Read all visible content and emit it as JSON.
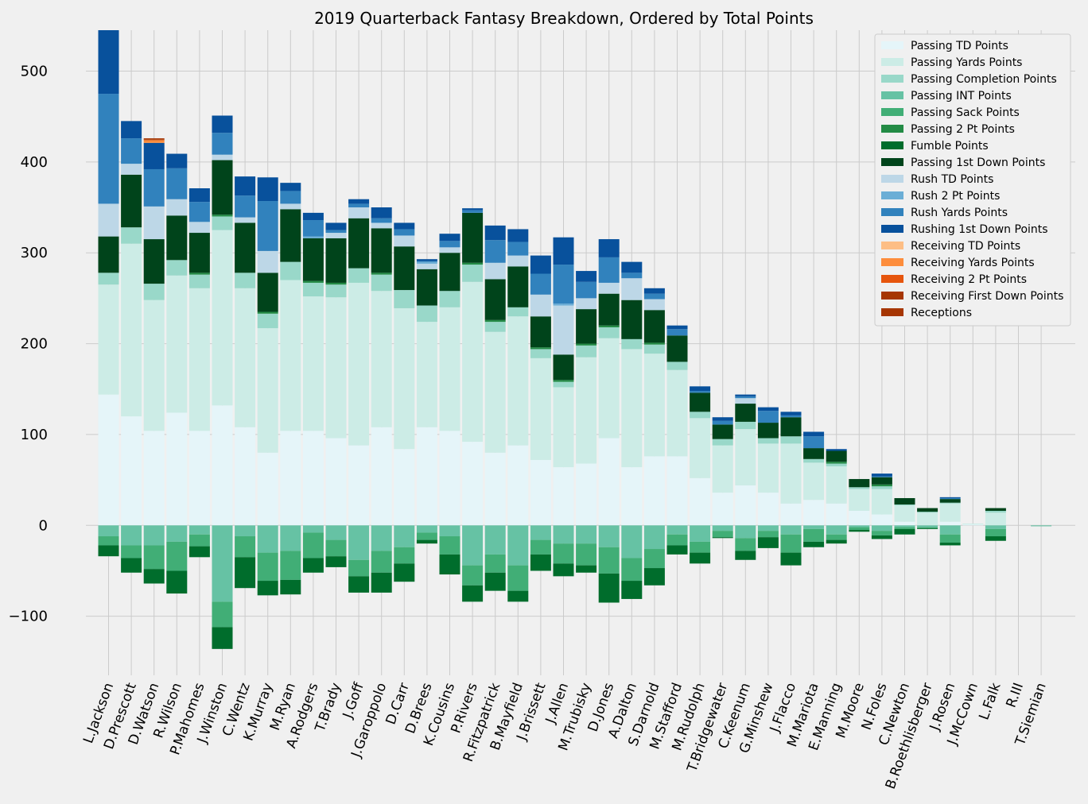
{
  "chart_data": {
    "type": "bar",
    "stacked": true,
    "title": "2019 Quarterback Fantasy Breakdown, Ordered by Total Points",
    "xlabel": "",
    "ylabel": "",
    "ylim": [
      -165,
      545
    ],
    "yticks": [
      -100,
      0,
      100,
      200,
      300,
      400,
      500
    ],
    "ytick_labels": [
      "−100",
      "0",
      "100",
      "200",
      "300",
      "400",
      "500"
    ],
    "grid": true,
    "legend_position": "top-right",
    "categories": [
      "L.Jackson",
      "D.Prescott",
      "D.Watson",
      "R.Wilson",
      "P.Mahomes",
      "J.Winston",
      "C.Wentz",
      "K.Murray",
      "M.Ryan",
      "A.Rodgers",
      "T.Brady",
      "J.Goff",
      "J.Garoppolo",
      "D.Carr",
      "D.Brees",
      "K.Cousins",
      "P.Rivers",
      "R.Fitzpatrick",
      "B.Mayfield",
      "J.Brissett",
      "J.Allen",
      "M.Trubisky",
      "D.Jones",
      "A.Dalton",
      "S.Darnold",
      "M.Stafford",
      "M.Rudolph",
      "T.Bridgewater",
      "C.Keenum",
      "G.Minshew",
      "J.Flacco",
      "M.Mariota",
      "E.Manning",
      "M.Moore",
      "N.Foles",
      "C.Newton",
      "B.Roethlisberger",
      "J.Rosen",
      "J.McCown",
      "L.Falk",
      "R.III",
      "T.Siemian"
    ],
    "series": [
      {
        "name": "Passing TD Points",
        "color": "#e5f5f9",
        "values": [
          144,
          120,
          104,
          124,
          104,
          132,
          108,
          80,
          104,
          104,
          96,
          88,
          108,
          84,
          108,
          104,
          92,
          80,
          88,
          72,
          64,
          68,
          96,
          64,
          76,
          76,
          52,
          36,
          44,
          36,
          24,
          28,
          24,
          16,
          12,
          4,
          0,
          4,
          1,
          0,
          0,
          0
        ]
      },
      {
        "name": "Passing Yards Points",
        "color": "#ccece6",
        "values": [
          121,
          190,
          144,
          151,
          157,
          193,
          153,
          137,
          166,
          148,
          155,
          179,
          150,
          155,
          116,
          136,
          176,
          133,
          142,
          112,
          88,
          117,
          110,
          130,
          113,
          95,
          66,
          52,
          62,
          54,
          66,
          41,
          41,
          24,
          28,
          18,
          14,
          20,
          1,
          14,
          0,
          0
        ]
      },
      {
        "name": "Passing Completion Points",
        "color": "#99d8c9",
        "values": [
          13,
          18,
          18,
          17,
          15,
          15,
          17,
          16,
          20,
          15,
          14,
          16,
          18,
          20,
          18,
          18,
          19,
          11,
          10,
          10,
          6,
          13,
          12,
          11,
          10,
          9,
          7,
          7,
          8,
          6,
          8,
          4,
          3,
          2,
          3,
          1,
          1,
          1,
          0,
          2,
          0,
          0
        ]
      },
      {
        "name": "Passing INT Points",
        "color": "#66c2a4",
        "values": [
          -12,
          -22,
          -22,
          -18,
          -10,
          -84,
          -12,
          -30,
          -28,
          -8,
          -16,
          -38,
          -28,
          -24,
          -8,
          -12,
          -44,
          -32,
          -44,
          -16,
          -20,
          -20,
          -24,
          -36,
          -26,
          -10,
          -18,
          -6,
          -14,
          -6,
          -10,
          -4,
          -10,
          -2,
          -6,
          -2,
          -2,
          -10,
          0,
          -4,
          0,
          -1
        ]
      },
      {
        "name": "Passing Sack Points",
        "color": "#41ae76",
        "values": [
          -10,
          -14,
          -26,
          -32,
          -13,
          -28,
          -23,
          -31,
          -32,
          -28,
          -18,
          -18,
          -24,
          -18,
          -8,
          -20,
          -22,
          -20,
          -28,
          -16,
          -22,
          -24,
          -29,
          -25,
          -21,
          -12,
          -12,
          -7,
          -14,
          -7,
          -20,
          -14,
          -6,
          -3,
          -5,
          -2,
          -1,
          -9,
          0,
          -8,
          0,
          0
        ]
      },
      {
        "name": "Passing 2 Pt Points",
        "color": "#238b45",
        "values": [
          0,
          0,
          0,
          0,
          2,
          2,
          0,
          2,
          0,
          2,
          2,
          0,
          2,
          0,
          0,
          0,
          2,
          2,
          0,
          2,
          2,
          2,
          2,
          0,
          2,
          0,
          0,
          0,
          0,
          0,
          0,
          0,
          2,
          0,
          2,
          0,
          0,
          0,
          0,
          0,
          0,
          0
        ]
      },
      {
        "name": "Fumble Points",
        "color": "#006d2c",
        "values": [
          -12,
          -16,
          -16,
          -25,
          -12,
          -24,
          -34,
          -16,
          -16,
          -16,
          -12,
          -18,
          -22,
          -20,
          -4,
          -22,
          -18,
          -20,
          -12,
          -18,
          -14,
          -8,
          -32,
          -20,
          -19,
          -10,
          -12,
          -1,
          -10,
          -12,
          -14,
          -6,
          -4,
          -2,
          -4,
          -6,
          -1,
          -3,
          0,
          -5,
          0,
          0
        ]
      },
      {
        "name": "Passing 1st Down Points",
        "color": "#00441b",
        "values": [
          40,
          58,
          49,
          49,
          44,
          60,
          55,
          43,
          58,
          47,
          49,
          55,
          49,
          48,
          40,
          42,
          55,
          45,
          45,
          34,
          28,
          38,
          35,
          43,
          36,
          29,
          21,
          16,
          20,
          17,
          21,
          12,
          12,
          9,
          8,
          7,
          4,
          4,
          0,
          3,
          0,
          0
        ]
      },
      {
        "name": "Rush TD Points",
        "color": "#bdd7e7",
        "values": [
          36,
          12,
          36,
          18,
          12,
          6,
          6,
          24,
          6,
          0,
          6,
          12,
          6,
          12,
          6,
          6,
          0,
          18,
          12,
          24,
          54,
          12,
          12,
          24,
          12,
          0,
          0,
          0,
          6,
          0,
          0,
          0,
          0,
          0,
          0,
          0,
          0,
          0,
          0,
          0,
          0,
          0
        ]
      },
      {
        "name": "Rush 2 Pt Points",
        "color": "#6baed6",
        "values": [
          0,
          0,
          0,
          0,
          0,
          0,
          0,
          0,
          0,
          2,
          0,
          0,
          0,
          0,
          2,
          0,
          0,
          0,
          0,
          0,
          2,
          0,
          0,
          0,
          0,
          0,
          0,
          0,
          0,
          0,
          0,
          0,
          0,
          0,
          0,
          0,
          0,
          0,
          0,
          0,
          0,
          0
        ]
      },
      {
        "name": "Rush Yards Points",
        "color": "#3182bd",
        "values": [
          121,
          28,
          41,
          34,
          22,
          24,
          24,
          55,
          14,
          18,
          3,
          4,
          5,
          7,
          1,
          7,
          3,
          25,
          15,
          23,
          43,
          18,
          28,
          6,
          6,
          7,
          2,
          4,
          2,
          13,
          2,
          13,
          0,
          0,
          1,
          0,
          0,
          1,
          0,
          0,
          0,
          0
        ]
      },
      {
        "name": "Rushing 1st Down Points",
        "color": "#08519c",
        "values": [
          70,
          19,
          29,
          16,
          15,
          19,
          21,
          26,
          9,
          8,
          8,
          5,
          12,
          7,
          2,
          8,
          2,
          16,
          14,
          20,
          30,
          12,
          20,
          12,
          6,
          4,
          5,
          4,
          2,
          4,
          4,
          5,
          2,
          0,
          3,
          0,
          0,
          1,
          0,
          0,
          0,
          0
        ]
      },
      {
        "name": "Receiving TD Points",
        "color": "#fdbe85",
        "values": [
          0,
          0,
          0,
          0,
          0,
          0,
          0,
          0,
          0,
          0,
          0,
          0,
          0,
          0,
          0,
          0,
          0,
          0,
          0,
          0,
          0,
          0,
          0,
          0,
          0,
          0,
          0,
          0,
          0,
          0,
          0,
          0,
          0,
          0,
          0,
          0,
          0,
          0,
          0,
          0,
          0,
          0
        ]
      },
      {
        "name": "Receiving Yards Points",
        "color": "#fd8d3c",
        "values": [
          0,
          0,
          3,
          0,
          0,
          0,
          0,
          0,
          0,
          0,
          0,
          0,
          0,
          0,
          0,
          0,
          0,
          0,
          0,
          0,
          0,
          0,
          0,
          0,
          0,
          0,
          0,
          0,
          0,
          0,
          0,
          0,
          0,
          0,
          0,
          0,
          0,
          0,
          0,
          0,
          0,
          0
        ]
      },
      {
        "name": "Receiving 2 Pt Points",
        "color": "#e6550d",
        "values": [
          0,
          0,
          0,
          0,
          0,
          0,
          0,
          0,
          0,
          0,
          0,
          0,
          0,
          0,
          0,
          0,
          0,
          0,
          0,
          0,
          0,
          0,
          0,
          0,
          0,
          0,
          0,
          0,
          0,
          0,
          0,
          0,
          0,
          0,
          0,
          0,
          0,
          0,
          0,
          0,
          0,
          0
        ]
      },
      {
        "name": "Receiving First Down Points",
        "color": "#a63603",
        "values": [
          0,
          0,
          1,
          0,
          0,
          0,
          0,
          0,
          0,
          0,
          0,
          0,
          0,
          0,
          0,
          0,
          0,
          0,
          0,
          0,
          0,
          0,
          0,
          0,
          0,
          0,
          0,
          0,
          0,
          0,
          0,
          0,
          0,
          0,
          0,
          0,
          0,
          0,
          0,
          0,
          0,
          0
        ]
      },
      {
        "name": "Receptions",
        "color": "#a63603",
        "values": [
          0,
          0,
          1,
          0,
          0,
          0,
          0,
          0,
          0,
          0,
          0,
          0,
          0,
          0,
          0,
          0,
          0,
          0,
          0,
          0,
          0,
          0,
          0,
          0,
          0,
          0,
          0,
          0,
          0,
          0,
          0,
          0,
          0,
          0,
          0,
          0,
          0,
          0,
          0,
          0,
          0,
          0
        ]
      }
    ]
  }
}
